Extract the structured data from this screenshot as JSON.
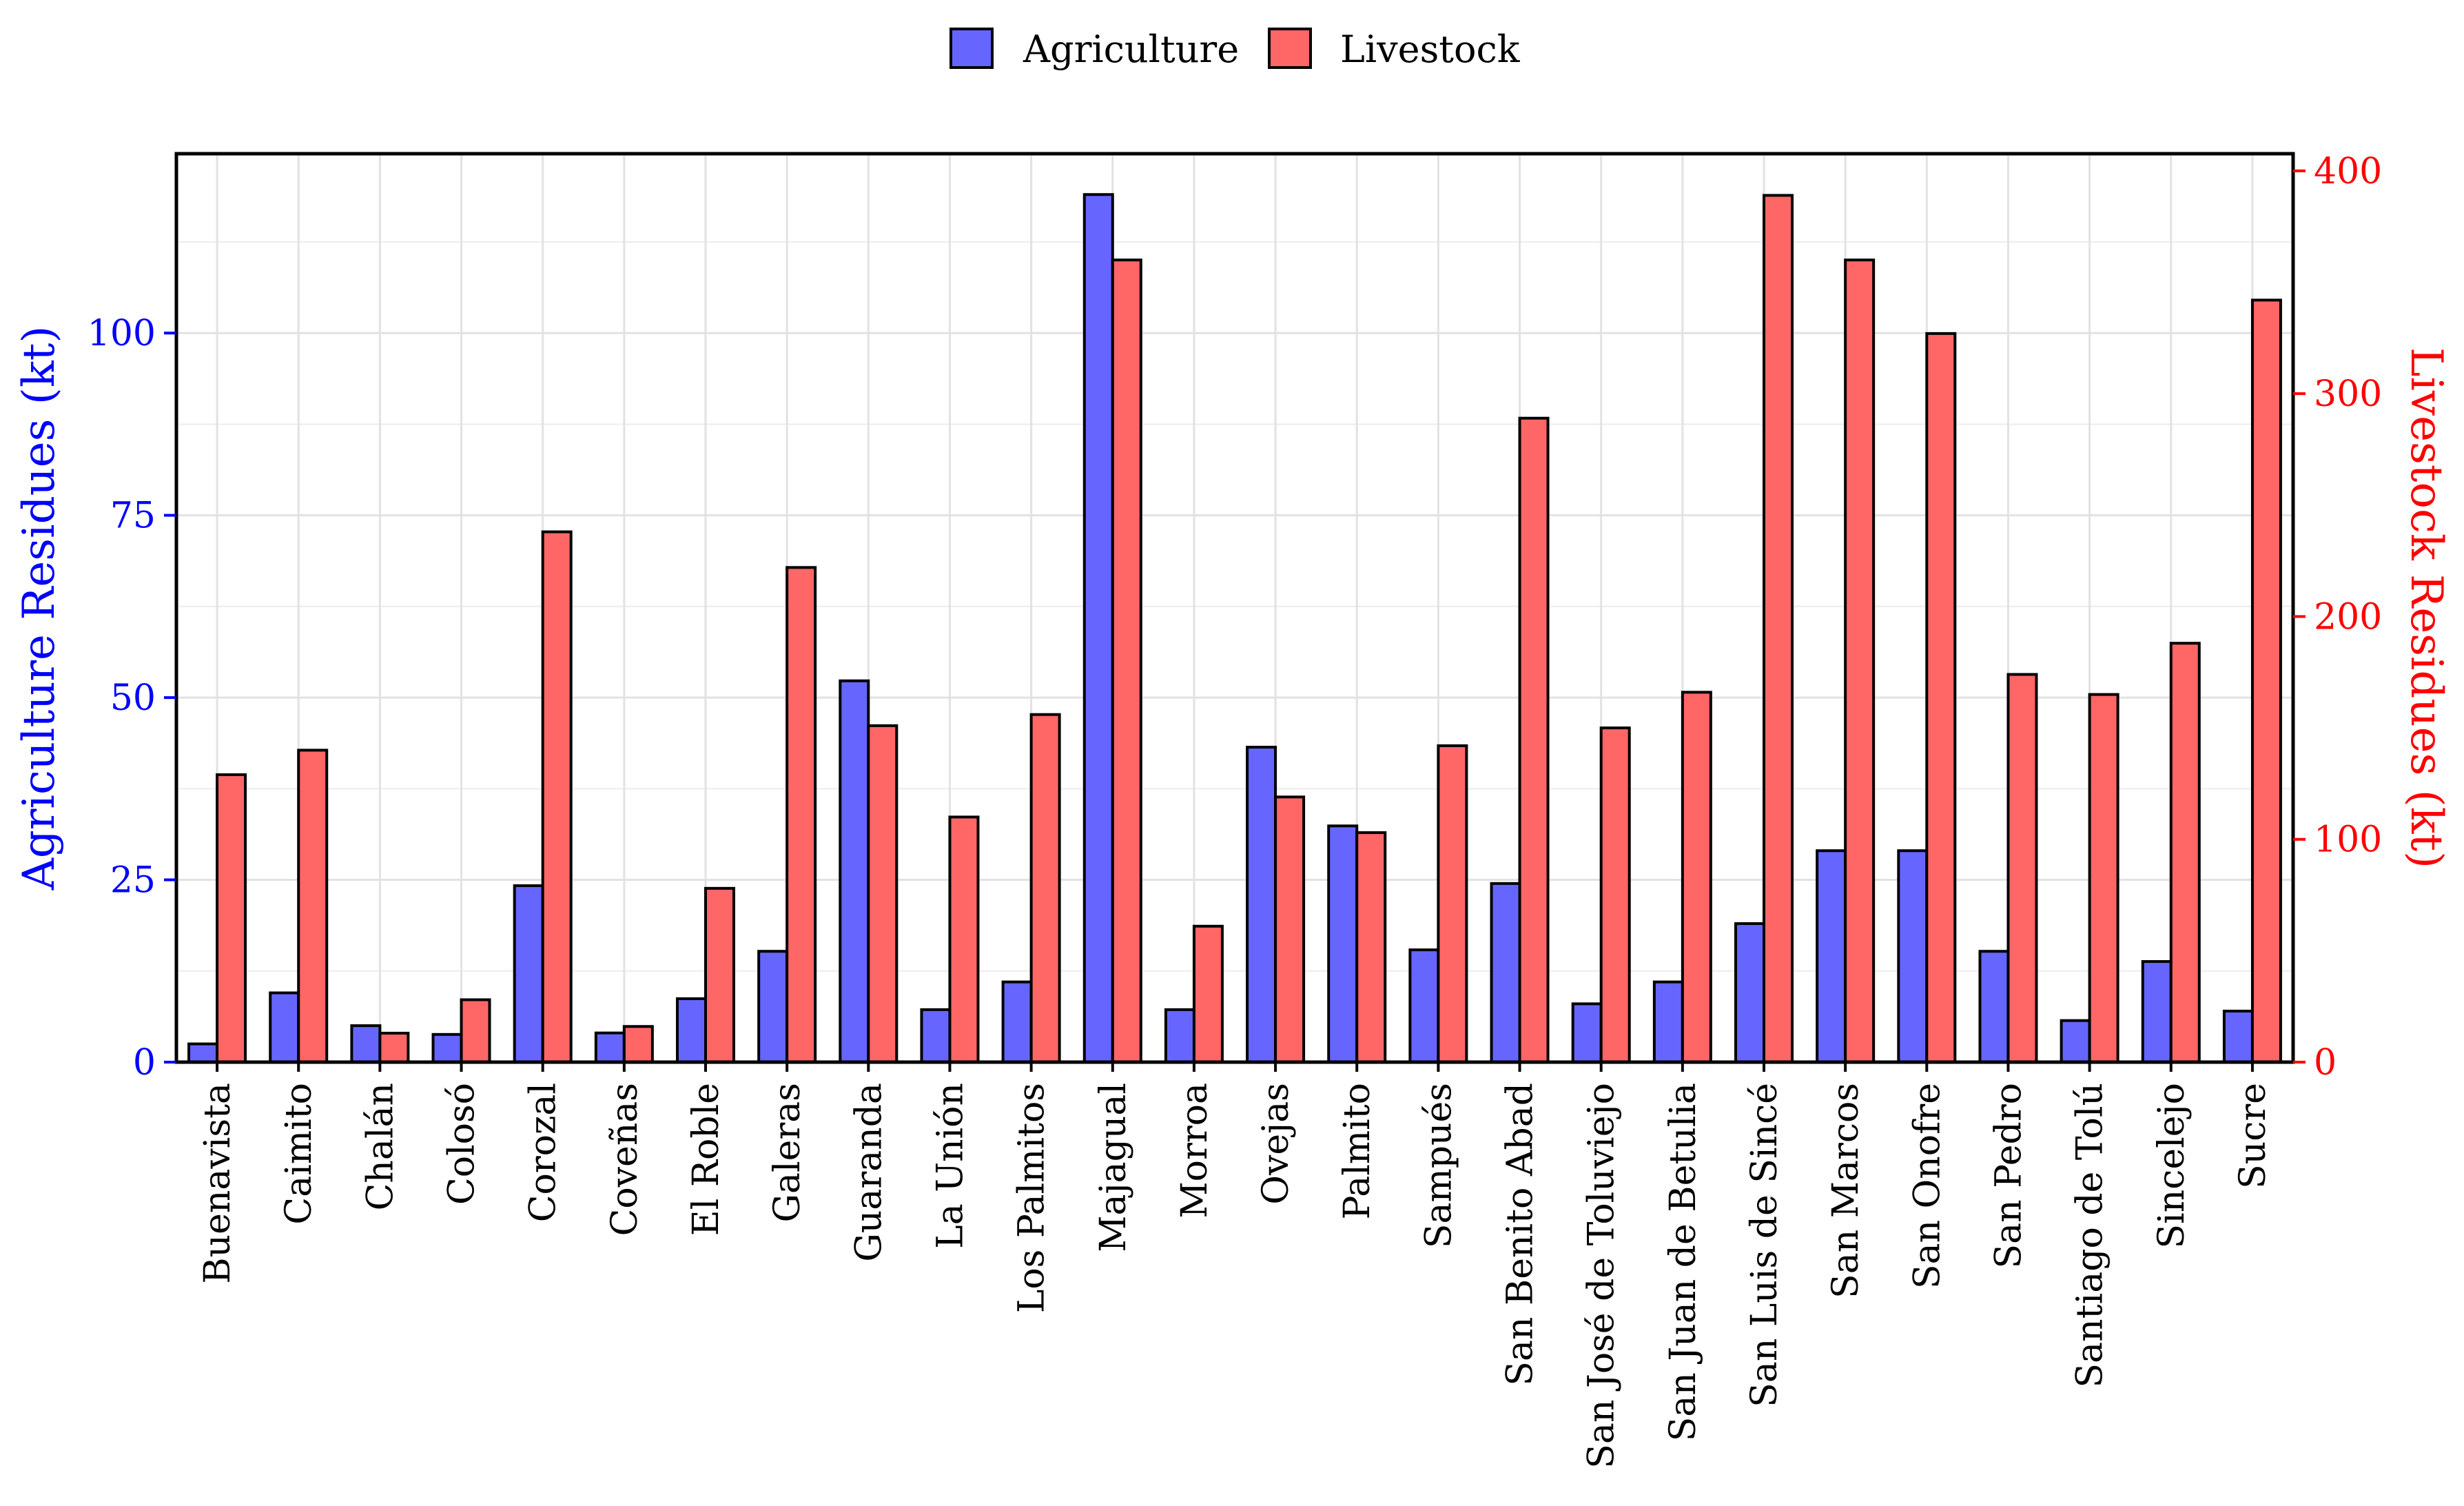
{
  "chart_data": {
    "type": "bar",
    "title": "",
    "xlabel": "",
    "categories": [
      "Buenavista",
      "Caimito",
      "Chalán",
      "Colosó",
      "Corozal",
      "Coveñas",
      "El Roble",
      "Galeras",
      "Guaranda",
      "La Unión",
      "Los Palmitos",
      "Majagual",
      "Morroa",
      "Ovejas",
      "Palmito",
      "Sampués",
      "San Benito Abad",
      "San José de Toluviejo",
      "San Juan de Betulia",
      "San Luis de Sincé",
      "San Marcos",
      "San Onofre",
      "San Pedro",
      "Santiago de Tolú",
      "Sincelejo",
      "Sucre"
    ],
    "series": [
      {
        "name": "Agriculture",
        "axis": "left",
        "color": "#6666ff",
        "values": [
          2.5,
          9.5,
          5,
          3.8,
          24.2,
          4,
          8.7,
          15.2,
          52.3,
          7.2,
          11,
          119,
          7.2,
          43.2,
          32.4,
          15.4,
          24.5,
          8,
          11,
          19,
          29,
          29,
          15.2,
          5.7,
          13.8,
          7
        ]
      },
      {
        "name": "Livestock",
        "axis": "right",
        "color": "#ff6666",
        "values": [
          129,
          140,
          13,
          28,
          238,
          16,
          78,
          222,
          151,
          110,
          156,
          360,
          61,
          119,
          103,
          142,
          289,
          150,
          166,
          389,
          360,
          327,
          174,
          165,
          188,
          342
        ]
      }
    ],
    "y_left": {
      "label": "Agriculture Residues (kt)",
      "ylim": [
        0,
        124.6
      ],
      "ticks": [
        0,
        25,
        50,
        75,
        100
      ],
      "color": "#0000ff"
    },
    "y_right": {
      "label": "Livestock Residues (kt)",
      "ylim": [
        0,
        407.7
      ],
      "ticks": [
        0,
        100,
        200,
        300,
        400
      ],
      "color": "#ff0000"
    },
    "legend": {
      "position": "top-center",
      "entries": [
        "Agriculture",
        "Livestock"
      ]
    },
    "grid": true
  }
}
